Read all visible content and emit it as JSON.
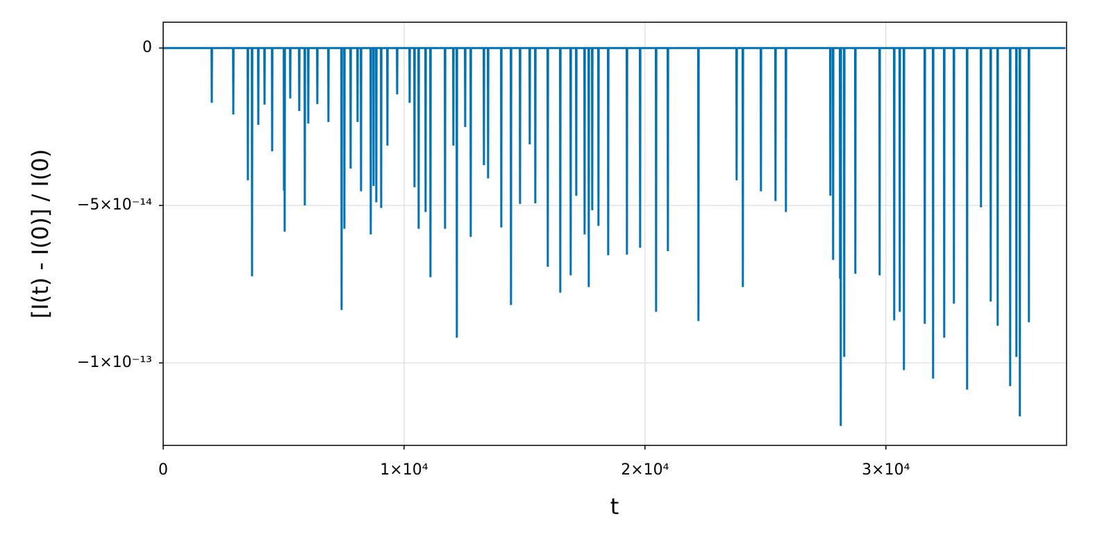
{
  "chart_data": {
    "type": "line",
    "x_label": "t",
    "y_label": "[I(t) - I(0)] / I(0)",
    "xlim": [
      0,
      37500
    ],
    "ylim": [
      -1.262e-13,
      8.2e-15
    ],
    "xticks": [
      0,
      {
        "value": 10000,
        "label": "1×10⁴"
      },
      {
        "value": 20000,
        "label": "2×10⁴"
      },
      {
        "value": 30000,
        "label": "3×10⁴"
      }
    ],
    "yticks": [
      0,
      {
        "value": -5e-14,
        "label": "−5×10⁻¹⁴"
      },
      {
        "value": -1e-13,
        "label": "−1×10⁻¹³"
      }
    ],
    "grid": true,
    "x": [
      0,
      2007,
      2017,
      2027,
      2901,
      2911,
      2921,
      3506,
      3516,
      3526,
      3679,
      3689,
      3699,
      3938,
      3948,
      3958,
      4197,
      4207,
      4217,
      4514,
      4524,
      4534,
      5004,
      5014,
      5024,
      5033,
      5043,
      5053,
      5264,
      5274,
      5284,
      5638,
      5648,
      5658,
      5869,
      5879,
      5889,
      6013,
      6023,
      6033,
      6388,
      6398,
      6408,
      6849,
      6859,
      6869,
      7396,
      7406,
      7416,
      7512,
      7522,
      7532,
      7771,
      7781,
      7791,
      8059,
      8069,
      8079,
      8203,
      8213,
      8223,
      8607,
      8617,
      8627,
      8722,
      8732,
      8742,
      8837,
      8847,
      8857,
      9039,
      9049,
      9059,
      9298,
      9308,
      9318,
      9702,
      9712,
      9722,
      10221,
      10231,
      10241,
      10422,
      10432,
      10442,
      10595,
      10605,
      10615,
      10883,
      10893,
      10903,
      11085,
      11095,
      11105,
      11690,
      11700,
      11710,
      12036,
      12046,
      12056,
      12180,
      12190,
      12200,
      12526,
      12536,
      12546,
      12757,
      12767,
      12777,
      13304,
      13314,
      13324,
      13477,
      13487,
      13497,
      14025,
      14035,
      14045,
      14428,
      14438,
      14448,
      14803,
      14813,
      14823,
      15206,
      15216,
      15226,
      15437,
      15447,
      15457,
      15955,
      15965,
      15975,
      16474,
      16484,
      16494,
      16906,
      16916,
      16926,
      17137,
      17147,
      17157,
      17483,
      17493,
      17503,
      17656,
      17666,
      17676,
      17800,
      17810,
      17820,
      18059,
      18069,
      18079,
      18463,
      18473,
      18483,
      19241,
      19251,
      19261,
      19788,
      19798,
      19808,
      20451,
      20461,
      20471,
      20941,
      20951,
      20961,
      22209,
      22219,
      22229,
      23794,
      23804,
      23814,
      24053,
      24063,
      24073,
      24803,
      24813,
      24823,
      25408,
      25418,
      25428,
      25840,
      25850,
      25860,
      27685,
      27695,
      27705,
      27800,
      27810,
      27820,
      28088,
      28098,
      28108,
      28117,
      28127,
      28137,
      28261,
      28271,
      28281,
      28722,
      28732,
      28742,
      29731,
      29741,
      29751,
      30336,
      30346,
      30356,
      30566,
      30576,
      30586,
      30739,
      30749,
      30759,
      31604,
      31614,
      31624,
      31950,
      31960,
      31970,
      32411,
      32421,
      32431,
      32814,
      32824,
      32834,
      33362,
      33372,
      33382,
      33938,
      33948,
      33958,
      34342,
      34352,
      34362,
      34630,
      34640,
      34650,
      35149,
      35159,
      35169,
      35408,
      35418,
      35428,
      35552,
      35562,
      35572,
      35927,
      35937,
      35947,
      37450
    ],
    "series": [
      {
        "color": "#0072b2",
        "values": [
          0,
          0,
          -1.74e-14,
          0,
          0,
          -2.11e-14,
          0,
          0,
          -4.2e-14,
          0,
          0,
          -7.25e-14,
          0,
          0,
          -2.44e-14,
          0,
          0,
          -1.8e-14,
          0,
          0,
          -3.28e-14,
          0,
          0,
          -4.53e-14,
          0,
          0,
          -5.83e-14,
          0,
          0,
          -1.6e-14,
          0,
          0,
          -2e-14,
          0,
          0,
          -5e-14,
          0,
          0,
          -2.4e-14,
          0,
          0,
          -1.78e-14,
          0,
          0,
          -2.35e-14,
          0,
          0,
          -8.32e-14,
          0,
          0,
          -5.74e-14,
          0,
          0,
          -3.83e-14,
          0,
          0,
          -2.35e-14,
          0,
          0,
          -4.55e-14,
          0,
          0,
          -5.92e-14,
          0,
          0,
          -4.38e-14,
          0,
          0,
          -4.9e-14,
          0,
          0,
          -5.08e-14,
          0,
          0,
          -3.1e-14,
          0,
          0,
          -1.47e-14,
          0,
          0,
          -1.74e-14,
          0,
          0,
          -4.42e-14,
          0,
          0,
          -5.74e-14,
          0,
          0,
          -5.21e-14,
          0,
          0,
          -7.28e-14,
          0,
          0,
          -5.74e-14,
          0,
          0,
          -3.1e-14,
          0,
          0,
          -9.2e-14,
          0,
          0,
          -2.51e-14,
          0,
          0,
          -6e-14,
          0,
          0,
          -3.72e-14,
          0,
          0,
          -4.14e-14,
          0,
          0,
          -5.7e-14,
          0,
          0,
          -8.16e-14,
          0,
          0,
          -4.95e-14,
          0,
          0,
          -3.06e-14,
          0,
          0,
          -4.93e-14,
          0,
          0,
          -6.95e-14,
          0,
          0,
          -7.77e-14,
          0,
          0,
          -7.22e-14,
          0,
          0,
          -4.69e-14,
          0,
          0,
          -5.92e-14,
          0,
          0,
          -7.59e-14,
          0,
          0,
          -5.15e-14,
          0,
          0,
          -5.65e-14,
          0,
          0,
          -6.58e-14,
          0,
          0,
          -6.56e-14,
          0,
          0,
          -6.34e-14,
          0,
          0,
          -8.38e-14,
          0,
          0,
          -6.45e-14,
          0,
          0,
          -8.67e-14,
          0,
          0,
          -4.2e-14,
          0,
          0,
          -7.59e-14,
          0,
          0,
          -4.55e-14,
          0,
          0,
          -4.86e-14,
          0,
          0,
          -5.21e-14,
          0,
          0,
          -4.69e-14,
          0,
          0,
          -6.73e-14,
          0,
          0,
          -7.33e-14,
          0,
          0,
          -1.2e-13,
          0,
          0,
          -9.81e-14,
          0,
          0,
          -7.17e-14,
          0,
          0,
          -7.22e-14,
          0,
          0,
          -8.65e-14,
          0,
          0,
          -8.38e-14,
          0,
          0,
          -1.023e-13,
          0,
          0,
          -8.76e-14,
          0,
          0,
          -1.05e-13,
          0,
          0,
          -9.2e-14,
          0,
          0,
          -8.12e-14,
          0,
          0,
          -1.085e-13,
          0,
          0,
          -5.06e-14,
          0,
          0,
          -8.05e-14,
          0,
          0,
          -8.82e-14,
          0,
          0,
          -1.074e-13,
          0,
          0,
          -9.81e-14,
          0,
          0,
          -1.17e-13,
          0,
          0,
          -8.71e-14,
          0,
          0
        ]
      }
    ]
  }
}
